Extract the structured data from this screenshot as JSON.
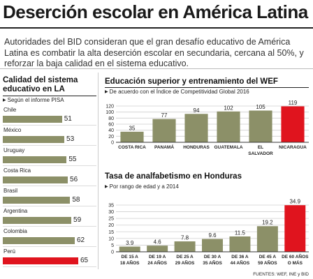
{
  "header": {
    "title": "Deserción escolar en América Latina",
    "intro": "Autoridades del BID consideran que el gran desafío educativo de América Latina es combatir la alta deserción escolar en secundaria, cercana al 50%, y reforzar la baja calidad en el sistema educativo."
  },
  "sources": "FUENTES: WEF, INE y BID",
  "chart_data": [
    {
      "type": "bar",
      "orientation": "horizontal",
      "title": "Calidad del sistema educativo en LA",
      "subtitle": "Según el informe PISA",
      "categories": [
        "Chile",
        "México",
        "Uruguay",
        "Costa Rica",
        "Brasil",
        "Argentina",
        "Colombia",
        "Perú"
      ],
      "values": [
        51,
        53,
        55,
        56,
        58,
        59,
        62,
        65
      ],
      "highlight": "Perú",
      "colors": {
        "bar": "#8c9068",
        "highlight": "#e0141e"
      }
    },
    {
      "type": "bar",
      "title": "Educación superior y entrenamiento del WEF",
      "subtitle": "De acuerdo con el Índice de Competitividad Global 2016",
      "categories": [
        [
          "COSTA RICA"
        ],
        [
          "PANAMÁ"
        ],
        [
          "HONDURAS"
        ],
        [
          "GUATEMALA"
        ],
        [
          "EL",
          "SALVADOR"
        ],
        [
          "NICARAGUA"
        ]
      ],
      "values": [
        35,
        77,
        94,
        102,
        105,
        119
      ],
      "ylim": [
        0,
        120
      ],
      "yticks": [
        0,
        20,
        40,
        60,
        80,
        100,
        120
      ],
      "grid": true,
      "highlight_index": 5,
      "colors": {
        "bar": "#8c9068",
        "highlight": "#e0141e"
      }
    },
    {
      "type": "bar",
      "title": "Tasa de analfabetismo en Honduras",
      "subtitle": "Por rango de edad y a 2014",
      "categories": [
        [
          "DE 15 A",
          "18 AÑOS"
        ],
        [
          "DE 19 A",
          "24 AÑOS"
        ],
        [
          "DE 25 A",
          "29 AÑOS"
        ],
        [
          "DE 30 A",
          "35 AÑOS"
        ],
        [
          "DE 36 A",
          "44 AÑOS"
        ],
        [
          "DE 45 A",
          "59 AÑOS"
        ],
        [
          "DE 60 AÑOS",
          "O MÁS"
        ]
      ],
      "values": [
        3.9,
        4.6,
        7.8,
        9.6,
        11.5,
        19.2,
        34.9
      ],
      "ylim": [
        0,
        35
      ],
      "yticks": [
        0,
        5,
        10,
        15,
        20,
        25,
        30,
        35
      ],
      "grid": true,
      "highlight_index": 6,
      "colors": {
        "bar": "#8c9068",
        "highlight": "#e0141e"
      }
    }
  ]
}
